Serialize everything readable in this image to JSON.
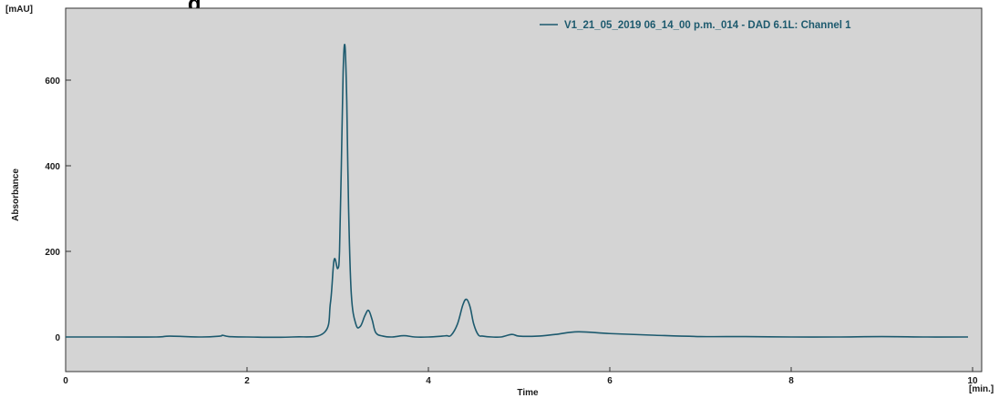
{
  "header_fragment": "g",
  "chart_data": {
    "type": "line",
    "ylabel": "Absorbance",
    "yunit": "[mAU]",
    "xlabel": "Time",
    "xunit": "[min.]",
    "xlim": [
      0,
      10
    ],
    "ylim": [
      -75,
      760
    ],
    "xticks": [
      0,
      2,
      4,
      6,
      8,
      10
    ],
    "xtick_labels": [
      "0",
      "2",
      "4",
      "6",
      "8",
      "10"
    ],
    "yticks": [
      0,
      200,
      400,
      600
    ],
    "ytick_labels": [
      "0",
      "200",
      "400",
      "600"
    ],
    "grid": false,
    "legend": "top-right",
    "colors": {
      "plot_bg": "#d4d4d4",
      "line": "#1d5a6e",
      "legend_text": "#1d5a6e"
    },
    "series": [
      {
        "name": "V1_21_05_2019 06_14_00 p.m._014 - DAD 6.1L: Channel 1",
        "x": [
          0,
          0.5,
          1.0,
          1.15,
          1.5,
          1.7,
          1.73,
          1.8,
          2.0,
          2.5,
          2.85,
          2.92,
          2.96,
          3.0,
          3.02,
          3.04,
          3.06,
          3.08,
          3.1,
          3.12,
          3.15,
          3.2,
          3.25,
          3.3,
          3.34,
          3.38,
          3.42,
          3.5,
          3.6,
          3.73,
          3.85,
          4.0,
          4.15,
          4.2,
          4.25,
          4.32,
          4.38,
          4.42,
          4.46,
          4.5,
          4.55,
          4.6,
          4.7,
          4.8,
          4.92,
          5.0,
          5.2,
          5.4,
          5.65,
          6.0,
          6.5,
          7.0,
          7.5,
          8.0,
          8.5,
          9.0,
          9.5,
          9.95
        ],
        "y": [
          0,
          0,
          0,
          2,
          0,
          2,
          4,
          1,
          0,
          0,
          10,
          80,
          180,
          160,
          200,
          400,
          620,
          680,
          550,
          300,
          100,
          30,
          25,
          50,
          62,
          40,
          10,
          2,
          0,
          3,
          0,
          0,
          2,
          3,
          4,
          30,
          75,
          88,
          70,
          30,
          5,
          2,
          0,
          0,
          6,
          2,
          2,
          6,
          12,
          8,
          4,
          1,
          1,
          0,
          0,
          1,
          0,
          0
        ]
      }
    ]
  }
}
